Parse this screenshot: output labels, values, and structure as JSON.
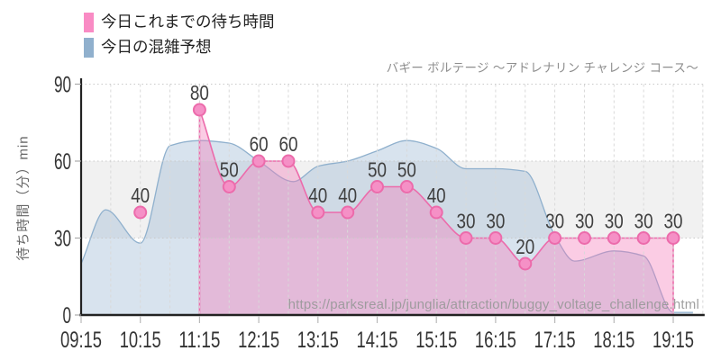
{
  "title": "バギー ボルテージ 〜アドレナリン チャレンジ コース〜",
  "watermark": "https://parksreal.jp/junglia/attraction/buggy_voltage_challenge.html",
  "y_axis_title": "待ち時間（分）min",
  "legend": [
    {
      "label": "今日これまでの待ち時間",
      "color": "#f98bc4"
    },
    {
      "label": "今日の混雑予想",
      "color": "#90b0cd"
    }
  ],
  "chart_data": {
    "type": "line",
    "x_ticks": [
      "09:15",
      "10:15",
      "11:15",
      "12:15",
      "13:15",
      "14:15",
      "15:15",
      "16:15",
      "17:15",
      "18:15",
      "19:15"
    ],
    "y_ticks": [
      0,
      30,
      60,
      90
    ],
    "ylim": [
      0,
      90
    ],
    "x_range": [
      "09:15",
      "19:45"
    ],
    "grid": "vertical dashed every 30min, horizontal dotted at 30/60/90",
    "legend_position": "top-left",
    "reference_band": {
      "from": 30,
      "to": 60,
      "color": "#f1f1f1"
    },
    "series": [
      {
        "name": "今日これまでの待ち時間",
        "type": "line+markers+labels",
        "color": "#ec6bab",
        "fill": "rgba(244,120,184,0.38)",
        "marker_fill": "#f590c6",
        "points": [
          {
            "t": "10:15",
            "v": 40,
            "isolated": true
          },
          {
            "t": "11:15",
            "v": 80
          },
          {
            "t": "11:45",
            "v": 50
          },
          {
            "t": "12:15",
            "v": 60
          },
          {
            "t": "12:45",
            "v": 60
          },
          {
            "t": "13:15",
            "v": 40
          },
          {
            "t": "13:45",
            "v": 40
          },
          {
            "t": "14:15",
            "v": 50
          },
          {
            "t": "14:45",
            "v": 50
          },
          {
            "t": "15:15",
            "v": 40
          },
          {
            "t": "15:45",
            "v": 30
          },
          {
            "t": "16:15",
            "v": 30
          },
          {
            "t": "16:45",
            "v": 20
          },
          {
            "t": "17:15",
            "v": 30
          },
          {
            "t": "17:45",
            "v": 30
          },
          {
            "t": "18:15",
            "v": 30
          },
          {
            "t": "18:45",
            "v": 30
          },
          {
            "t": "19:15",
            "v": 30
          }
        ]
      },
      {
        "name": "今日の混雑予想",
        "type": "area",
        "color": "#8fb0cd",
        "fill": "rgba(143,176,205,0.35)",
        "points": [
          {
            "t": "09:15",
            "v": 20
          },
          {
            "t": "09:40",
            "v": 41
          },
          {
            "t": "10:15",
            "v": 28
          },
          {
            "t": "10:45",
            "v": 66
          },
          {
            "t": "11:15",
            "v": 68
          },
          {
            "t": "11:45",
            "v": 67
          },
          {
            "t": "12:15",
            "v": 60
          },
          {
            "t": "12:50",
            "v": 52
          },
          {
            "t": "13:15",
            "v": 58
          },
          {
            "t": "13:45",
            "v": 60
          },
          {
            "t": "14:15",
            "v": 64
          },
          {
            "t": "14:45",
            "v": 68
          },
          {
            "t": "15:15",
            "v": 65
          },
          {
            "t": "15:45",
            "v": 57
          },
          {
            "t": "16:15",
            "v": 57
          },
          {
            "t": "16:45",
            "v": 56
          },
          {
            "t": "17:15",
            "v": 31
          },
          {
            "t": "17:35",
            "v": 21
          },
          {
            "t": "18:15",
            "v": 25
          },
          {
            "t": "18:45",
            "v": 23
          },
          {
            "t": "19:15",
            "v": 1
          },
          {
            "t": "19:35",
            "v": 1
          }
        ]
      }
    ]
  }
}
